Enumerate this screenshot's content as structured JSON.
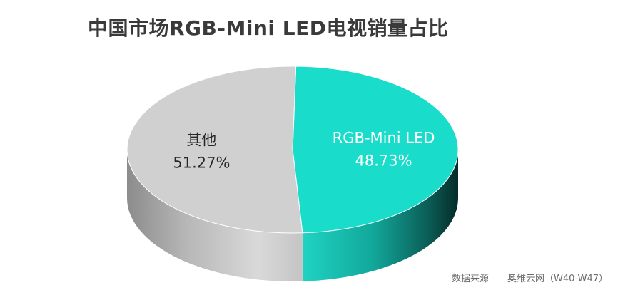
{
  "chart_data": {
    "type": "pie",
    "title": "中国市场RGB-Mini LED电视销量占比",
    "categories": [
      "RGB-Mini LED",
      "其他"
    ],
    "values": [
      48.73,
      51.27
    ],
    "value_labels": [
      "48.73%",
      "51.27%"
    ],
    "colors": {
      "RGB-Mini LED": "#19dccb",
      "其他": "#d0d0d0"
    },
    "label_colors": {
      "RGB-Mini LED": "#ffffff",
      "其他": "#262626"
    },
    "style": "3d",
    "legend": "none",
    "source_note": "数据来源——奥维云网（W40-W47）"
  }
}
